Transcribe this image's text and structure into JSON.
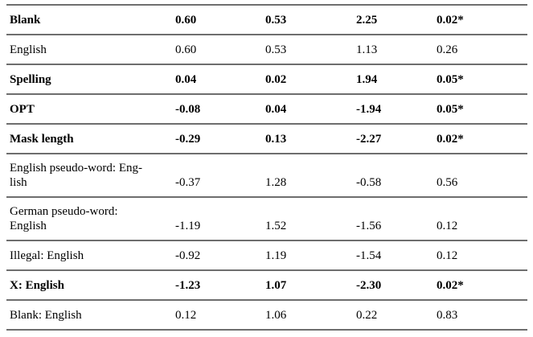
{
  "table": {
    "rows": [
      {
        "label": "Blank",
        "bold": true,
        "values": [
          "0.60",
          "0.53",
          "2.25",
          "0.02*"
        ]
      },
      {
        "label": "English",
        "bold": false,
        "values": [
          "0.60",
          "0.53",
          "1.13",
          "0.26"
        ]
      },
      {
        "label": "Spelling",
        "bold": true,
        "values": [
          "0.04",
          "0.02",
          "1.94",
          "0.05*"
        ]
      },
      {
        "label": "OPT",
        "bold": true,
        "values": [
          "-0.08",
          "0.04",
          "-1.94",
          "0.05*"
        ]
      },
      {
        "label": "Mask length",
        "bold": true,
        "values": [
          "-0.29",
          "0.13",
          "-2.27",
          "0.02*"
        ]
      },
      {
        "label": "English pseudo-word: Eng-\nlish",
        "bold": false,
        "values": [
          "-0.37",
          "1.28",
          "-0.58",
          "0.56"
        ]
      },
      {
        "label": "German pseudo-word:\nEnglish",
        "bold": false,
        "values": [
          "-1.19",
          "1.52",
          "-1.56",
          "0.12"
        ]
      },
      {
        "label": "Illegal: English",
        "bold": false,
        "values": [
          "-0.92",
          "1.19",
          "-1.54",
          "0.12"
        ]
      },
      {
        "label": "X: English",
        "bold": true,
        "values": [
          "-1.23",
          "1.07",
          "-2.30",
          "0.02*"
        ]
      },
      {
        "label": "Blank: English",
        "bold": false,
        "values": [
          "0.12",
          "1.06",
          "0.22",
          "0.83"
        ]
      }
    ]
  },
  "colors": {
    "rule": "#6e6e6e",
    "text": "#000000",
    "background": "#ffffff"
  }
}
